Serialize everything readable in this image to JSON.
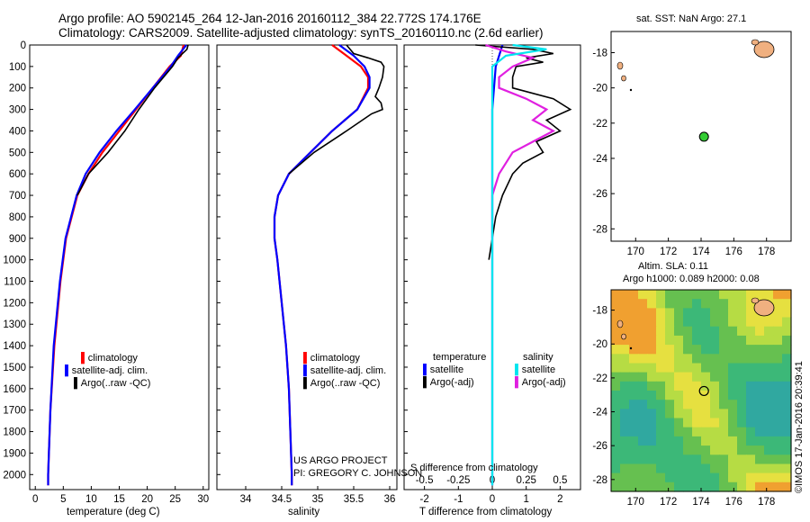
{
  "header": {
    "line1": "Argo profile: AO 5902145_264 12-Jan-2016 20160112_384 22.772S 174.176E",
    "line2": "Climatology: CARS2009. Satellite-adjusted climatology: synTS_20160110.nc (2.6d earlier)"
  },
  "colors": {
    "climatology": "#ff0000",
    "satellite": "#0000ff",
    "argo": "#000000",
    "sat_salinity": "#00e5ee",
    "argo_salinity": "#e020e0",
    "float": "#33cc33",
    "land": "#f0b080"
  },
  "chart_data": [
    {
      "id": "temperature",
      "type": "line",
      "xlabel": "temperature (deg C)",
      "ylabel": "",
      "xlim": [
        -1,
        31
      ],
      "ylim": [
        2070,
        0
      ],
      "xticks": [
        0,
        5,
        10,
        15,
        20,
        25,
        30
      ],
      "yticks": [
        0,
        100,
        200,
        300,
        400,
        500,
        600,
        700,
        800,
        900,
        1000,
        1100,
        1200,
        1300,
        1400,
        1500,
        1600,
        1700,
        1800,
        1900,
        2000
      ],
      "legend": [
        "climatology",
        "satellite-adj. clim.",
        "Argo(..raw -QC)"
      ],
      "series": [
        {
          "name": "climatology",
          "y": [
            0,
            50,
            100,
            200,
            300,
            400,
            500,
            600,
            700,
            900,
            1100,
            1400,
            1700,
            2000,
            2050
          ],
          "x": [
            26.5,
            26,
            24,
            21,
            18,
            15,
            12,
            9.5,
            7.5,
            5.5,
            4.5,
            3.4,
            2.7,
            2.3,
            2.3
          ]
        },
        {
          "name": "satellite-adj. clim.",
          "y": [
            0,
            50,
            100,
            200,
            300,
            400,
            500,
            600,
            700,
            900,
            1100,
            1400,
            1700,
            2000,
            2050
          ],
          "x": [
            27,
            25.5,
            24.2,
            21,
            17.8,
            14.5,
            11.5,
            9,
            7.4,
            5.4,
            4.4,
            3.3,
            2.7,
            2.3,
            2.3
          ]
        },
        {
          "name": "Argo(..raw -QC)",
          "y": [
            0,
            20,
            60,
            100,
            200,
            300,
            400,
            500,
            600,
            700
          ],
          "x": [
            27.3,
            27.1,
            25.5,
            24.5,
            21.3,
            18.5,
            16,
            13,
            9.5,
            7.5
          ]
        }
      ]
    },
    {
      "id": "salinity",
      "type": "line",
      "xlabel": "salinity",
      "ylabel": "",
      "xlim": [
        33.6,
        36.1
      ],
      "ylim": [
        2070,
        0
      ],
      "xticks": [
        34,
        34.5,
        35,
        35.5,
        36
      ],
      "legend": [
        "climatology",
        "satellite-adj. clim.",
        "Argo(..raw -QC)"
      ],
      "series": [
        {
          "name": "climatology",
          "y": [
            0,
            50,
            100,
            150,
            200,
            300,
            400,
            500,
            600,
            700,
            800,
            900,
            1000,
            1200,
            1400,
            1600,
            1800,
            2000,
            2050
          ],
          "x": [
            35.2,
            35.4,
            35.6,
            35.7,
            35.7,
            35.55,
            35.2,
            34.9,
            34.6,
            34.45,
            34.4,
            34.4,
            34.44,
            34.5,
            34.56,
            34.6,
            34.62,
            34.64,
            34.64
          ]
        },
        {
          "name": "satellite-adj. clim.",
          "y": [
            0,
            50,
            100,
            150,
            200,
            300,
            400,
            500,
            600,
            700,
            800,
            900,
            1000,
            1200,
            1400,
            1600,
            1800,
            2000,
            2050
          ],
          "x": [
            35.3,
            35.5,
            35.65,
            35.72,
            35.72,
            35.55,
            35.2,
            34.9,
            34.6,
            34.45,
            34.4,
            34.4,
            34.44,
            34.5,
            34.56,
            34.6,
            34.62,
            34.64,
            34.64
          ]
        },
        {
          "name": "Argo(..raw -QC)",
          "y": [
            0,
            40,
            60,
            80,
            100,
            150,
            200,
            240,
            270,
            300,
            320,
            400,
            500,
            600
          ],
          "x": [
            35.4,
            35.5,
            35.7,
            35.88,
            35.92,
            35.9,
            35.85,
            35.8,
            35.88,
            35.9,
            35.75,
            35.4,
            34.95,
            34.6
          ]
        }
      ]
    },
    {
      "id": "difference",
      "type": "line",
      "xlabel": "T difference from climatology",
      "xlabel2": "S difference from climatology",
      "xlim": [
        -2.6,
        2.6
      ],
      "ylim": [
        2070,
        0
      ],
      "xticks_T": [
        -2,
        -1,
        0,
        1,
        2
      ],
      "xticks_S": [
        -0.5,
        -0.25,
        0,
        0.25,
        0.5
      ],
      "legend_title_T": "temperature",
      "legend_title_S": "salinity",
      "legend": [
        "satellite",
        "Argo(-adj)",
        "satellite",
        "Argo(-adj)"
      ],
      "series": [
        {
          "name": "T satellite",
          "y": [
            0,
            100,
            300,
            500,
            800,
            1100,
            1500,
            2050
          ],
          "x": [
            0.3,
            0.1,
            0,
            0,
            0,
            0,
            0,
            0
          ]
        },
        {
          "name": "T Argo(-adj)",
          "y": [
            0,
            20,
            40,
            60,
            80,
            100,
            150,
            200,
            250,
            300,
            350,
            400,
            450,
            500,
            550,
            600,
            700,
            800,
            900,
            1000
          ],
          "x": [
            -0.5,
            1.2,
            1.8,
            1.0,
            1.5,
            0.7,
            0.6,
            0.6,
            1.8,
            2.3,
            1.6,
            2.0,
            1.3,
            1.5,
            0.9,
            0.6,
            0.3,
            0.1,
            0,
            -0.1
          ]
        },
        {
          "name": "S satellite",
          "y": [
            0,
            20,
            50,
            100,
            200,
            400,
            600,
            1000,
            1500,
            2050
          ],
          "x": [
            0.15,
            0.4,
            0.1,
            0,
            0,
            0,
            0,
            0,
            0,
            0
          ]
        },
        {
          "name": "S Argo(-adj)",
          "y": [
            0,
            30,
            60,
            100,
            150,
            200,
            250,
            300,
            350,
            400,
            450,
            500,
            600,
            700,
            900
          ],
          "x": [
            -0.05,
            0.1,
            0.3,
            0.15,
            0.05,
            0.05,
            0.25,
            0.4,
            0.3,
            0.45,
            0.3,
            0.15,
            0.05,
            0,
            0
          ]
        }
      ]
    },
    {
      "id": "sst_map",
      "type": "scatter",
      "title": "sat. SST: NaN Argo: 27.1",
      "xlim": [
        168.5,
        179.5
      ],
      "ylim": [
        -28.7,
        -16.8
      ],
      "xticks": [
        170,
        172,
        174,
        176,
        178
      ],
      "yticks": [
        -18,
        -20,
        -22,
        -24,
        -26,
        -28
      ],
      "float": {
        "x": 174.176,
        "y": -22.772
      }
    },
    {
      "id": "sla_map",
      "type": "heatmap",
      "title1": "Altim. SLA: 0.11",
      "title2": "Argo h1000: 0.089 h2000: 0.08",
      "xlim": [
        168.5,
        179.5
      ],
      "ylim": [
        -28.7,
        -16.8
      ],
      "xticks": [
        170,
        172,
        174,
        176,
        178
      ],
      "yticks": [
        -18,
        -20,
        -22,
        -24,
        -26,
        -28
      ],
      "float": {
        "x": 174.176,
        "y": -22.772
      }
    }
  ],
  "legends": {
    "profile": [
      "climatology",
      "satellite-adj. clim.",
      "Argo(..raw -QC)"
    ],
    "diff_T_title": "temperature",
    "diff_S_title": "salinity",
    "diff_T": [
      "satellite",
      "Argo(-adj)"
    ],
    "diff_S": [
      "satellite",
      "Argo(-adj)"
    ]
  },
  "credits": {
    "project": "US ARGO PROJECT",
    "pi": "PI: GREGORY C. JOHNSON",
    "imos": "©IMOS 17-Jan-2016 20:39:41"
  }
}
